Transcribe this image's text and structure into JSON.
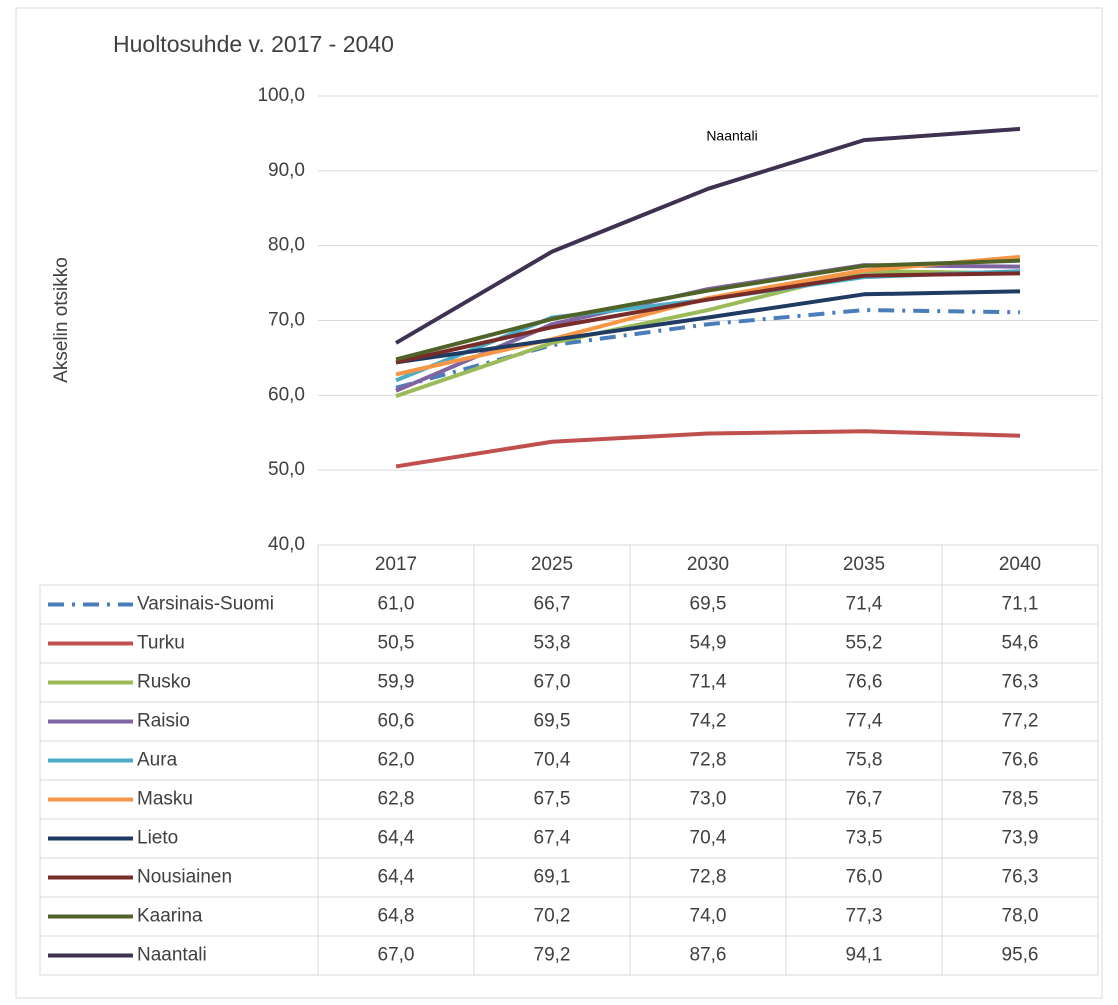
{
  "chart_data": {
    "type": "line",
    "title": "Huoltosuhde v. 2017 - 2040",
    "y_label": "Akselin otsikko",
    "annotations": [
      {
        "text": "Naantali",
        "series": 9,
        "near": 2
      }
    ],
    "categories": [
      "2017",
      "2025",
      "2030",
      "2035",
      "2040"
    ],
    "ylim": [
      40,
      100
    ],
    "yticks": [
      {
        "value": 40,
        "label": "40,0"
      },
      {
        "value": 50,
        "label": "50,0"
      },
      {
        "value": 60,
        "label": "60,0"
      },
      {
        "value": 70,
        "label": "70,0"
      },
      {
        "value": 80,
        "label": "80,0"
      },
      {
        "value": 90,
        "label": "90,0"
      },
      {
        "value": 100,
        "label": "100,0"
      }
    ],
    "grid": true,
    "legend": "table",
    "series": [
      {
        "name": "Varsinais-Suomi",
        "color": "#4a7ebb",
        "style": "dash-dot",
        "values": [
          61.0,
          66.7,
          69.5,
          71.4,
          71.1
        ],
        "value_labels": [
          "61,0",
          "66,7",
          "69,5",
          "71,4",
          "71,1"
        ]
      },
      {
        "name": "Turku",
        "color": "#c0504d",
        "values": [
          50.5,
          53.8,
          54.9,
          55.2,
          54.6
        ],
        "value_labels": [
          "50,5",
          "53,8",
          "54,9",
          "55,2",
          "54,6"
        ]
      },
      {
        "name": "Rusko",
        "color": "#9bbb59",
        "values": [
          59.9,
          67.0,
          71.4,
          76.6,
          76.3
        ],
        "value_labels": [
          "59,9",
          "67,0",
          "71,4",
          "76,6",
          "76,3"
        ]
      },
      {
        "name": "Raisio",
        "color": "#8064a2",
        "values": [
          60.6,
          69.5,
          74.2,
          77.4,
          77.2
        ],
        "value_labels": [
          "60,6",
          "69,5",
          "74,2",
          "77,4",
          "77,2"
        ]
      },
      {
        "name": "Aura",
        "color": "#4bacc6",
        "values": [
          62.0,
          70.4,
          72.8,
          75.8,
          76.6
        ],
        "value_labels": [
          "62,0",
          "70,4",
          "72,8",
          "75,8",
          "76,6"
        ]
      },
      {
        "name": "Masku",
        "color": "#f79646",
        "values": [
          62.8,
          67.5,
          73.0,
          76.7,
          78.5
        ],
        "value_labels": [
          "62,8",
          "67,5",
          "73,0",
          "76,7",
          "78,5"
        ]
      },
      {
        "name": "Lieto",
        "color": "#1f3b63",
        "values": [
          64.4,
          67.4,
          70.4,
          73.5,
          73.9
        ],
        "value_labels": [
          "64,4",
          "67,4",
          "70,4",
          "73,5",
          "73,9"
        ]
      },
      {
        "name": "Nousiainen",
        "color": "#772c2a",
        "values": [
          64.4,
          69.1,
          72.8,
          76.0,
          76.3
        ],
        "value_labels": [
          "64,4",
          "69,1",
          "72,8",
          "76,0",
          "76,3"
        ]
      },
      {
        "name": "Kaarina",
        "color": "#4f6228",
        "values": [
          64.8,
          70.2,
          74.0,
          77.3,
          78.0
        ],
        "value_labels": [
          "64,8",
          "70,2",
          "74,0",
          "77,3",
          "78,0"
        ]
      },
      {
        "name": "Naantali",
        "color": "#3f3151",
        "values": [
          67.0,
          79.2,
          87.6,
          94.1,
          95.6
        ],
        "value_labels": [
          "67,0",
          "79,2",
          "87,6",
          "94,1",
          "95,6"
        ]
      }
    ]
  }
}
